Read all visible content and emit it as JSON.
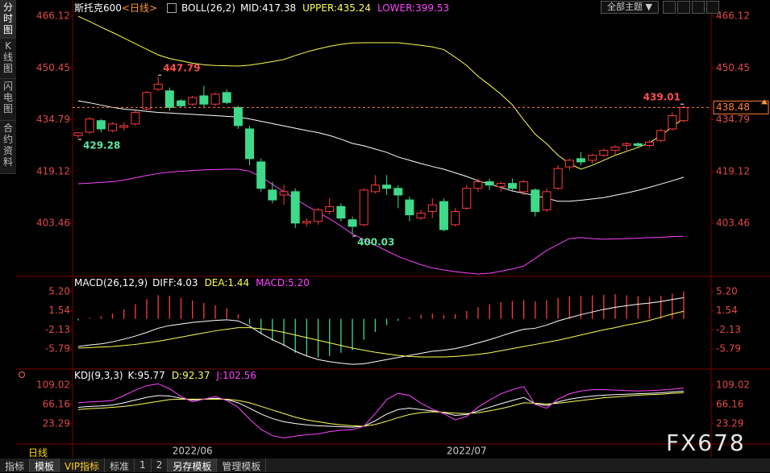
{
  "sidebar": [
    "分时图",
    "K线图",
    "闪电图",
    "合约资料"
  ],
  "topbar": "全部主题",
  "period_label": "日线",
  "watermark": "FX678",
  "toolbar": [
    "指标",
    "模板",
    "VIP指标",
    "标准",
    "1",
    "2",
    "另存模板",
    "管理模板"
  ],
  "chart_data": [
    {
      "type": "candlestick",
      "title": "斯托克600",
      "period": "<日线>",
      "indicator": "BOLL(26,2)",
      "up_color": "#ff3c3c",
      "down_color": "#3fd98a",
      "categories": [
        null,
        null,
        null,
        null,
        null,
        null,
        null,
        null,
        null,
        null,
        "2022/06",
        null,
        null,
        null,
        null,
        null,
        null,
        null,
        null,
        null,
        null,
        null,
        null,
        null,
        null,
        null,
        null,
        null,
        null,
        null,
        null,
        null,
        null,
        null,
        "2022/07",
        null,
        null,
        null,
        null,
        null,
        null,
        null,
        null,
        null,
        null,
        null,
        null,
        null,
        null,
        null,
        null,
        null,
        null,
        null
      ],
      "open": [
        430,
        431,
        434.5,
        431.5,
        432.5,
        433.5,
        438,
        444,
        443.5,
        440.5,
        439.5,
        442,
        439.5,
        443,
        438.5,
        432,
        422,
        413.5,
        412,
        413,
        403.5,
        404,
        407,
        408.5,
        404.5,
        403,
        413,
        415,
        414,
        410.5,
        405,
        407,
        410,
        403,
        408,
        414,
        416,
        414.5,
        415.5,
        413,
        413.5,
        407.5,
        414,
        420.5,
        423,
        422.5,
        424,
        425.5,
        427,
        427.5,
        427,
        428.5,
        432,
        434.5
      ],
      "high": [
        431,
        435.5,
        435,
        434,
        434,
        437.5,
        443.5,
        447.79,
        444.5,
        441,
        442,
        445,
        443,
        444,
        439,
        433,
        423,
        416,
        415,
        414,
        405,
        408,
        411,
        409.5,
        405.5,
        414,
        418,
        418,
        415,
        411.5,
        407.5,
        411,
        411,
        408,
        415,
        417,
        417,
        416,
        417,
        416.5,
        414,
        414,
        421,
        423,
        425,
        424.5,
        426,
        427,
        428,
        428,
        428.5,
        432,
        437,
        439.01
      ],
      "low": [
        429.28,
        430.5,
        431,
        431,
        431.5,
        433,
        437.5,
        443.5,
        437.5,
        438.5,
        439,
        438.5,
        439,
        439.5,
        432,
        421,
        413,
        409.5,
        409,
        402,
        402.5,
        403,
        406,
        404,
        400.03,
        402.5,
        412.5,
        412,
        408,
        404,
        404.5,
        405,
        401,
        402.5,
        407.5,
        413,
        413.5,
        413,
        413,
        412,
        405.5,
        407,
        413.5,
        419.5,
        421,
        421.5,
        423.5,
        424,
        425,
        426.5,
        426.5,
        428,
        431.5,
        434
      ],
      "close": [
        430.8,
        435,
        432,
        433.5,
        433,
        437,
        443,
        445.5,
        438.5,
        439,
        441.5,
        439.5,
        442.5,
        440,
        433,
        423,
        414,
        410.5,
        413,
        403.5,
        404,
        407.5,
        408.5,
        405,
        402.5,
        413.5,
        415,
        414,
        412,
        406,
        406.5,
        409,
        401.5,
        407,
        414,
        416,
        415,
        415.5,
        414,
        416,
        407,
        413,
        420,
        422.5,
        422,
        424,
        425.5,
        426.5,
        427.5,
        427,
        428,
        431.5,
        436,
        438.48
      ],
      "series": [
        {
          "name": "MID:417.38",
          "color": "#ffffff",
          "values": [
            440.5,
            439.9,
            439.2,
            438.5,
            438.0,
            437.7,
            437.3,
            437.0,
            436.8,
            436.6,
            436.4,
            436.2,
            436.0,
            435.8,
            435.6,
            435.0,
            434.3,
            433.6,
            432.9,
            432.2,
            431.5,
            430.9,
            430.0,
            428.9,
            427.6,
            426.9,
            425.9,
            424.9,
            423.5,
            422.5,
            421.5,
            420.6,
            419.8,
            418.7,
            417.6,
            416.3,
            415.3,
            414.3,
            413.2,
            412.5,
            411.8,
            411.0,
            410.1,
            410.1,
            410.4,
            410.8,
            411.2,
            411.9,
            412.6,
            413.4,
            414.3,
            415.3,
            416.3,
            417.38
          ]
        },
        {
          "name": "UPPER:435.24",
          "color": "#ffff55",
          "values": [
            466.1,
            464.5,
            462.8,
            461.2,
            459.5,
            457.8,
            456.1,
            454.4,
            453.3,
            452.6,
            451.9,
            451.4,
            451.2,
            451.1,
            451.0,
            451.3,
            451.8,
            452.4,
            453.0,
            454.2,
            455.3,
            456.2,
            457.0,
            457.6,
            458.0,
            458.1,
            458.1,
            458.1,
            458.1,
            457.7,
            457.3,
            456.8,
            456.0,
            453.7,
            451.2,
            447.9,
            445.3,
            442.5,
            439.3,
            434.7,
            430.4,
            427.5,
            424.0,
            421.5,
            419.8,
            421.0,
            422.5,
            424.0,
            425.2,
            426.4,
            427.8,
            430.0,
            432.6,
            435.24
          ]
        },
        {
          "name": "LOWER:399.53",
          "color": "#ff44ff",
          "values": [
            415.4,
            415.6,
            415.8,
            416.0,
            416.5,
            417.2,
            417.9,
            418.5,
            418.9,
            419.2,
            419.4,
            419.6,
            419.7,
            419.8,
            419.8,
            419.2,
            417.5,
            415.2,
            413.0,
            410.8,
            408.7,
            406.8,
            404.8,
            402.6,
            400.2,
            398.5,
            396.8,
            395.1,
            393.4,
            392.1,
            390.9,
            389.9,
            389.3,
            388.8,
            388.4,
            388.1,
            388.3,
            388.9,
            389.6,
            390.5,
            392.8,
            395.2,
            397.0,
            398.8,
            399.1,
            398.8,
            398.6,
            398.7,
            398.8,
            398.9,
            399.1,
            399.2,
            399.4,
            399.53
          ]
        }
      ],
      "annotations": [
        447.79,
        429.28,
        400.03,
        439.01
      ],
      "ylim": [
        387.6,
        467.6
      ],
      "yticks": [
        466.12,
        450.45,
        434.79,
        419.12,
        403.46
      ]
    },
    {
      "type": "macd",
      "title": "MACD(26,12,9)",
      "up_color": "#ff3c3c",
      "down_color": "#3fd98a",
      "bars": {
        "name": "MACD:5.20",
        "color": "#ff44ff",
        "values": [
          -0.3,
          0.2,
          0.5,
          1.0,
          1.8,
          2.8,
          3.8,
          4.5,
          4.4,
          4.0,
          3.5,
          3.0,
          2.6,
          2.0,
          0.8,
          -1.0,
          -2.8,
          -4.2,
          -5.2,
          -6.5,
          -7.2,
          -7.4,
          -7.1,
          -6.5,
          -6.0,
          -4.0,
          -2.5,
          -1.2,
          -0.4,
          0.3,
          0.8,
          1.0,
          0.7,
          0.9,
          1.5,
          2.2,
          2.8,
          3.2,
          3.4,
          3.6,
          3.3,
          3.6,
          4.0,
          4.3,
          4.4,
          4.5,
          4.6,
          4.7,
          4.5,
          4.3,
          4.2,
          4.4,
          4.8,
          5.2
        ]
      },
      "series": [
        {
          "name": "DIFF:4.03",
          "color": "#ffffff",
          "values": [
            -5.3,
            -5.0,
            -4.8,
            -4.4,
            -3.9,
            -3.3,
            -2.6,
            -1.8,
            -1.3,
            -1.0,
            -0.7,
            -0.5,
            -0.3,
            -0.2,
            -0.4,
            -1.4,
            -2.8,
            -4.0,
            -5.0,
            -6.2,
            -7.1,
            -7.8,
            -8.2,
            -8.5,
            -8.7,
            -8.6,
            -8.2,
            -7.8,
            -7.4,
            -7.0,
            -6.6,
            -6.2,
            -6.0,
            -5.7,
            -5.2,
            -4.6,
            -4.0,
            -3.3,
            -2.6,
            -2.0,
            -1.8,
            -1.2,
            -0.4,
            0.2,
            0.8,
            1.3,
            1.8,
            2.2,
            2.5,
            2.8,
            3.0,
            3.3,
            3.7,
            4.03
          ]
        },
        {
          "name": "DEA:1.44",
          "color": "#ffff55",
          "values": [
            -5.6,
            -5.5,
            -5.4,
            -5.3,
            -5.1,
            -4.9,
            -4.6,
            -4.3,
            -3.9,
            -3.5,
            -3.1,
            -2.7,
            -2.3,
            -2.0,
            -1.7,
            -1.7,
            -1.9,
            -2.2,
            -2.6,
            -3.1,
            -3.6,
            -4.1,
            -4.6,
            -5.1,
            -5.6,
            -6.0,
            -6.4,
            -6.7,
            -7.0,
            -7.2,
            -7.3,
            -7.3,
            -7.3,
            -7.2,
            -7.0,
            -6.8,
            -6.5,
            -6.1,
            -5.7,
            -5.3,
            -4.9,
            -4.5,
            -4.1,
            -3.6,
            -3.1,
            -2.6,
            -2.1,
            -1.7,
            -1.2,
            -0.8,
            -0.3,
            0.3,
            0.9,
            1.44
          ]
        }
      ],
      "ylim": [
        -9.3,
        7.8
      ],
      "yticks": [
        {
          "value": 5.2,
          "label": "5.20"
        },
        1.54,
        -2.13,
        -5.79
      ]
    },
    {
      "type": "line",
      "title": "KDJ(9,3,3)",
      "series": [
        {
          "name": "K:95.77",
          "color": "#ffffff",
          "values": [
            60,
            62,
            63,
            65,
            70,
            76,
            82,
            86,
            85,
            80,
            76,
            78,
            80,
            77,
            70,
            58,
            45,
            35,
            28,
            24,
            21,
            19,
            18,
            17,
            16,
            18,
            30,
            45,
            55,
            58,
            55,
            52,
            48,
            42,
            44,
            52,
            60,
            68,
            75,
            82,
            68,
            64,
            72,
            78,
            82,
            85,
            87,
            88,
            89,
            90,
            91,
            92,
            94,
            95.77
          ]
        },
        {
          "name": "D:92.37",
          "color": "#ffff55",
          "values": [
            55,
            57,
            58,
            60,
            62,
            65,
            69,
            73,
            77,
            78,
            78,
            78,
            78,
            78,
            75,
            70,
            62,
            54,
            46,
            38,
            32,
            28,
            24,
            21,
            19,
            18,
            22,
            29,
            37,
            44,
            48,
            50,
            49,
            47,
            46,
            48,
            52,
            57,
            63,
            70,
            69,
            67,
            69,
            72,
            75,
            78,
            81,
            83,
            85,
            87,
            88,
            89,
            91,
            92.37
          ]
        },
        {
          "name": "J:102.56",
          "color": "#ff44ff",
          "values": [
            70,
            72,
            73,
            75,
            86,
            98,
            108,
            112,
            101,
            84,
            72,
            78,
            84,
            75,
            60,
            34,
            11,
            -3,
            -8,
            -4,
            -1,
            1,
            6,
            9,
            10,
            18,
            46,
            77,
            91,
            86,
            69,
            56,
            46,
            32,
            40,
            60,
            76,
            90,
            99,
            106,
            66,
            58,
            78,
            90,
            96,
            99,
            99,
            98,
            97,
            96,
            97,
            98,
            100,
            102.56
          ]
        }
      ],
      "ylim": [
        -19.6,
        137.6
      ],
      "yticks": [
        109.02,
        66.16,
        23.29
      ]
    }
  ]
}
